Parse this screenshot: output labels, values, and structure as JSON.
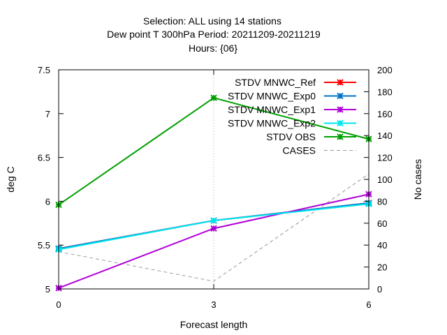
{
  "title": {
    "line1": "Selection: ALL using    14 stations",
    "line2": "Dew point T 300hPa   Period: 20211209-20211219",
    "line3": "Hours: {06}"
  },
  "chart_data": {
    "type": "line",
    "xlabel": "Forecast length",
    "ylabel": "deg C",
    "y2label": "No cases",
    "x": [
      0,
      3,
      6
    ],
    "xlim": [
      0,
      6
    ],
    "xticks": [
      "0",
      "3",
      "6"
    ],
    "ylim": [
      5,
      7.5
    ],
    "yticks": [
      "5",
      "5.5",
      "6",
      "6.5",
      "7",
      "7.5"
    ],
    "y2lim": [
      0,
      200
    ],
    "y2ticks": [
      "0",
      "20",
      "40",
      "60",
      "80",
      "100",
      "120",
      "140",
      "160",
      "180",
      "200"
    ],
    "grid": "dotted, x=3 only",
    "legend_position": "top-right",
    "series": [
      {
        "name": "STDV MNWC_Ref",
        "color": "#ff0000",
        "axis": "y",
        "values": [
          5.46,
          5.78,
          5.98
        ]
      },
      {
        "name": "STDV MNWC_Exp0",
        "color": "#0072c6",
        "axis": "y",
        "values": [
          5.46,
          5.78,
          5.98
        ]
      },
      {
        "name": "STDV MNWC_Exp1",
        "color": "#b000d8",
        "axis": "y",
        "values": [
          5.01,
          5.69,
          6.08
        ]
      },
      {
        "name": "STDV MNWC_Exp2",
        "color": "#00e5ee",
        "axis": "y",
        "values": [
          5.45,
          5.78,
          5.97
        ]
      },
      {
        "name": "STDV OBS",
        "color": "#00a000",
        "axis": "y",
        "values": [
          5.96,
          7.18,
          6.71
        ]
      },
      {
        "name": "CASES",
        "color": "#999999",
        "axis": "y2",
        "dashed": true,
        "values": [
          34,
          7,
          105
        ]
      }
    ]
  }
}
